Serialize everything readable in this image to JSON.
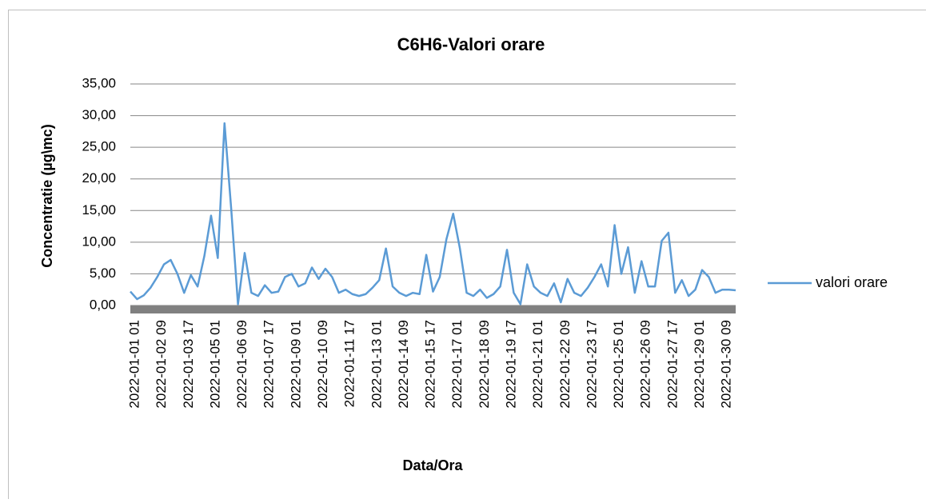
{
  "chart_data": {
    "type": "line",
    "title": "C6H6-Valori orare",
    "y_label": "Concentratie (µg\\mc)",
    "x_label": "Data/Ora",
    "categories": [
      "2022-01-01 01",
      null,
      null,
      null,
      "2022-01-02 09",
      null,
      null,
      null,
      "2022-01-03 17",
      null,
      null,
      null,
      "2022-01-05 01",
      null,
      null,
      null,
      "2022-01-06 09",
      null,
      null,
      null,
      "2022-01-07 17",
      null,
      null,
      null,
      "2022-01-09 01",
      null,
      null,
      null,
      "2022-01-10 09",
      null,
      null,
      null,
      "2022-01-11 17",
      null,
      null,
      null,
      "2022-01-13 01",
      null,
      null,
      null,
      "2022-01-14 09",
      null,
      null,
      null,
      "2022-01-15 17",
      null,
      null,
      null,
      "2022-01-17 01",
      null,
      null,
      null,
      "2022-01-18 09",
      null,
      null,
      null,
      "2022-01-19 17",
      null,
      null,
      null,
      "2022-01-21 01",
      null,
      null,
      null,
      "2022-01-22 09",
      null,
      null,
      null,
      "2022-01-23 17",
      null,
      null,
      null,
      "2022-01-25 01",
      null,
      null,
      null,
      "2022-01-26 09",
      null,
      null,
      null,
      "2022-01-27 17",
      null,
      null,
      null,
      "2022-01-29 01",
      null,
      null,
      null,
      "2022-01-30 09",
      null,
      null
    ],
    "series": [
      {
        "name": "valori orare",
        "color": "#5b9bd5",
        "values": [
          2.2,
          1.0,
          1.6,
          2.8,
          4.5,
          6.5,
          7.2,
          5.0,
          2.0,
          4.8,
          3.0,
          7.8,
          14.2,
          7.5,
          28.8,
          15.2,
          0.2,
          8.3,
          2.0,
          1.5,
          3.2,
          2.0,
          2.2,
          4.5,
          5.0,
          3.0,
          3.5,
          6.0,
          4.2,
          5.8,
          4.5,
          2.0,
          2.5,
          1.8,
          1.5,
          1.8,
          2.8,
          4.0,
          9.0,
          3.0,
          2.0,
          1.5,
          2.0,
          1.8,
          8.0,
          2.2,
          4.5,
          10.5,
          14.5,
          9.0,
          2.0,
          1.5,
          2.5,
          1.2,
          1.8,
          3.0,
          8.8,
          2.0,
          0.2,
          6.5,
          3.0,
          2.0,
          1.5,
          3.5,
          0.5,
          4.2,
          2.0,
          1.5,
          2.8,
          4.5,
          6.5,
          3.0,
          12.7,
          5.0,
          9.2,
          2.0,
          7.0,
          3.0,
          3.0,
          10.2,
          11.5,
          2.0,
          4.0,
          1.5,
          2.5,
          5.6,
          4.5,
          2.0,
          2.5,
          2.5,
          2.4
        ]
      }
    ],
    "ylim": [
      0,
      35
    ],
    "yticks": [
      {
        "value": 0,
        "label": "0,00"
      },
      {
        "value": 5,
        "label": "5,00"
      },
      {
        "value": 10,
        "label": "10,00"
      },
      {
        "value": 15,
        "label": "15,00"
      },
      {
        "value": 20,
        "label": "20,00"
      },
      {
        "value": 25,
        "label": "25,00"
      },
      {
        "value": 30,
        "label": "30,00"
      },
      {
        "value": 35,
        "label": "35,00"
      }
    ],
    "grid": true,
    "legend": "right"
  }
}
